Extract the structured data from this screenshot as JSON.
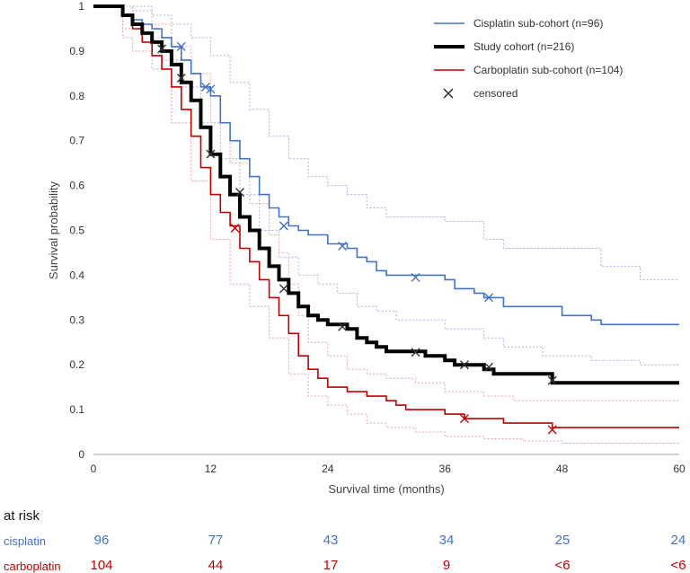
{
  "chart_data": {
    "type": "line",
    "subtype": "kaplan-meier",
    "xlabel": "Survival time (months)",
    "ylabel": "Survival probability",
    "xlim": [
      0,
      60
    ],
    "ylim": [
      0,
      1
    ],
    "xticks": [
      "0",
      "12",
      "24",
      "36",
      "48",
      "60"
    ],
    "yticks": [
      "0",
      "0.1",
      "0.2",
      "0.3",
      "0.4",
      "0.5",
      "0.6",
      "0.7",
      "0.8",
      "0.9",
      "1"
    ],
    "legend_position": "top-right",
    "colors": {
      "cisplatin": "#4472c4",
      "study": "#000000",
      "carboplatin": "#c00000",
      "ci_cis": "#9db3e0",
      "ci_carbo": "#e8a0a0"
    },
    "series": [
      {
        "name": "Cisplatin sub-cohort (n=96)",
        "key": "cisplatin",
        "x": [
          0,
          3,
          3,
          4,
          5,
          6,
          7,
          8,
          9,
          10,
          11,
          12,
          13,
          14,
          15,
          16,
          17,
          18,
          19,
          20,
          21,
          22,
          24,
          26,
          27,
          28,
          29,
          30,
          31,
          36,
          37,
          39,
          40,
          41,
          42,
          43,
          46,
          48,
          50,
          51,
          52,
          55,
          60
        ],
        "y": [
          1,
          1,
          0.98,
          0.97,
          0.96,
          0.95,
          0.93,
          0.91,
          0.88,
          0.85,
          0.82,
          0.8,
          0.74,
          0.7,
          0.66,
          0.62,
          0.58,
          0.55,
          0.53,
          0.51,
          0.5,
          0.49,
          0.47,
          0.46,
          0.44,
          0.43,
          0.41,
          0.4,
          0.4,
          0.39,
          0.37,
          0.36,
          0.35,
          0.35,
          0.33,
          0.33,
          0.33,
          0.31,
          0.31,
          0.3,
          0.29,
          0.29,
          0.29
        ],
        "censored": [
          [
            9,
            0.91
          ],
          [
            11.5,
            0.82
          ],
          [
            12,
            0.815
          ],
          [
            19.5,
            0.51
          ],
          [
            25.5,
            0.465
          ],
          [
            33,
            0.395
          ],
          [
            40.5,
            0.35
          ]
        ]
      },
      {
        "name": "Study cohort (n=216)",
        "key": "study",
        "x": [
          0,
          3,
          4,
          5,
          6,
          7,
          8,
          9,
          10,
          11,
          12,
          13,
          14,
          15,
          16,
          17,
          18,
          19,
          20,
          21,
          22,
          23,
          24,
          26,
          27,
          28,
          29,
          30,
          32,
          34,
          36,
          37,
          38,
          40,
          41,
          46,
          47,
          52,
          60
        ],
        "y": [
          1,
          0.98,
          0.96,
          0.94,
          0.92,
          0.9,
          0.87,
          0.83,
          0.79,
          0.73,
          0.67,
          0.62,
          0.58,
          0.53,
          0.5,
          0.46,
          0.42,
          0.39,
          0.36,
          0.33,
          0.31,
          0.3,
          0.29,
          0.28,
          0.26,
          0.25,
          0.24,
          0.23,
          0.23,
          0.22,
          0.21,
          0.2,
          0.2,
          0.19,
          0.18,
          0.18,
          0.16,
          0.16,
          0.16
        ],
        "censored": [
          [
            7,
            0.905
          ],
          [
            9,
            0.84
          ],
          [
            12,
            0.67
          ],
          [
            15,
            0.585
          ],
          [
            19.5,
            0.37
          ],
          [
            25.5,
            0.285
          ],
          [
            33,
            0.228
          ],
          [
            38,
            0.2
          ],
          [
            40.5,
            0.195
          ],
          [
            47,
            0.165
          ]
        ]
      },
      {
        "name": "Carboplatin sub-cohort (n=104)",
        "key": "carboplatin",
        "x": [
          0,
          3,
          4,
          5,
          6,
          7,
          8,
          9,
          10,
          11,
          12,
          13,
          14,
          15,
          16,
          17,
          18,
          19,
          20,
          21,
          22,
          23,
          24,
          25,
          26,
          28,
          30,
          31,
          32,
          34,
          36,
          38,
          40,
          42,
          43,
          46,
          47,
          48,
          60
        ],
        "y": [
          1,
          0.98,
          0.95,
          0.92,
          0.89,
          0.86,
          0.82,
          0.77,
          0.71,
          0.64,
          0.58,
          0.54,
          0.51,
          0.46,
          0.43,
          0.39,
          0.35,
          0.31,
          0.27,
          0.22,
          0.19,
          0.17,
          0.15,
          0.15,
          0.14,
          0.13,
          0.12,
          0.11,
          0.1,
          0.1,
          0.09,
          0.08,
          0.08,
          0.07,
          0.07,
          0.07,
          0.06,
          0.06,
          0.06
        ],
        "censored": [
          [
            14.5,
            0.505
          ],
          [
            38,
            0.08
          ],
          [
            47,
            0.055
          ]
        ]
      },
      {
        "name": "Cisplatin upper 95% CI",
        "key": "ci_cis",
        "ci": true,
        "x": [
          0,
          4,
          6,
          8,
          10,
          12,
          14,
          16,
          18,
          20,
          22,
          24,
          26,
          28,
          30,
          36,
          40,
          42,
          46,
          52,
          56,
          60
        ],
        "y": [
          1,
          1,
          0.98,
          0.96,
          0.93,
          0.89,
          0.83,
          0.77,
          0.71,
          0.66,
          0.62,
          0.6,
          0.58,
          0.55,
          0.53,
          0.52,
          0.48,
          0.46,
          0.46,
          0.42,
          0.39,
          0.39
        ]
      },
      {
        "name": "Cisplatin lower 95% CI",
        "key": "ci_cis",
        "ci": true,
        "x": [
          0,
          3,
          5,
          7,
          9,
          11,
          13,
          15,
          17,
          19,
          21,
          23,
          25,
          27,
          29,
          31,
          36,
          40,
          42,
          46,
          51,
          56,
          60
        ],
        "y": [
          1,
          0.95,
          0.92,
          0.88,
          0.82,
          0.74,
          0.66,
          0.58,
          0.5,
          0.44,
          0.4,
          0.38,
          0.36,
          0.33,
          0.32,
          0.3,
          0.28,
          0.26,
          0.24,
          0.22,
          0.21,
          0.2,
          0.2
        ]
      },
      {
        "name": "Carboplatin upper 95% CI",
        "key": "ci_carbo",
        "ci": true,
        "x": [
          0,
          4,
          6,
          8,
          10,
          12,
          14,
          16,
          18,
          19,
          20,
          21,
          22,
          24,
          26,
          28,
          30,
          33,
          36,
          40,
          43,
          46,
          52,
          60
        ],
        "y": [
          1,
          0.99,
          0.96,
          0.91,
          0.85,
          0.74,
          0.65,
          0.56,
          0.49,
          0.45,
          0.38,
          0.31,
          0.25,
          0.22,
          0.19,
          0.18,
          0.17,
          0.16,
          0.14,
          0.13,
          0.12,
          0.12,
          0.12,
          0.12
        ]
      },
      {
        "name": "Carboplatin lower 95% CI",
        "key": "ci_carbo",
        "ci": true,
        "x": [
          0,
          3,
          4,
          6,
          8,
          10,
          12,
          14,
          16,
          18,
          20,
          22,
          24,
          26,
          28,
          30,
          33,
          36,
          40,
          44,
          48,
          60
        ],
        "y": [
          1,
          0.93,
          0.9,
          0.86,
          0.74,
          0.61,
          0.48,
          0.38,
          0.33,
          0.26,
          0.18,
          0.13,
          0.11,
          0.09,
          0.07,
          0.06,
          0.05,
          0.04,
          0.035,
          0.03,
          0.025,
          0.025
        ]
      }
    ],
    "legend": [
      {
        "label": "Cisplatin sub-cohort (n=96)",
        "key": "cisplatin",
        "marker": "line"
      },
      {
        "label": "Study cohort (n=216)",
        "key": "study",
        "marker": "thick-line"
      },
      {
        "label": "Carboplatin sub-cohort (n=104)",
        "key": "carboplatin",
        "marker": "line"
      },
      {
        "label": "censored",
        "key": "study",
        "marker": "x"
      }
    ]
  },
  "at_risk": {
    "title": "at risk",
    "rows": [
      {
        "label": "cisplatin",
        "color": "#4472c4",
        "values": [
          "96",
          "77",
          "43",
          "34",
          "25",
          "24"
        ]
      },
      {
        "label": "carboplatin",
        "color": "#c00000",
        "values": [
          "104",
          "44",
          "17",
          "9",
          "<6",
          "<6"
        ]
      }
    ]
  }
}
